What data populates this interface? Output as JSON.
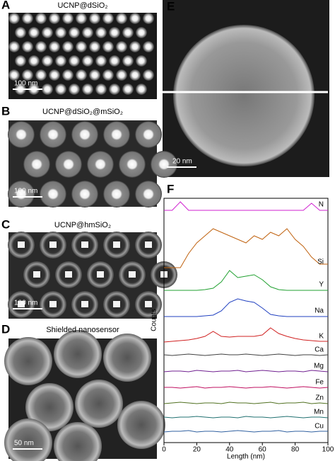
{
  "panels": [
    {
      "label": "A",
      "title": "UCNP@dSiO₂",
      "scale_bar": "100 nm"
    },
    {
      "label": "B",
      "title": "UCNP@dSiO₂@mSiO₂",
      "scale_bar": "100 nm"
    },
    {
      "label": "C",
      "title": "UCNP@hmSiO₂",
      "scale_bar": "100 nm"
    },
    {
      "label": "D",
      "title": "Shielded nanosensor",
      "scale_bar": "50 nm"
    },
    {
      "label": "E",
      "scale_bar": "20 nm"
    },
    {
      "label": "F"
    }
  ],
  "chart_data": {
    "type": "line",
    "x_label": "Length (nm)",
    "y_label": "Counts",
    "xlim": [
      0,
      100
    ],
    "xticks": [
      0,
      20,
      40,
      60,
      80,
      100
    ],
    "x": [
      0,
      5,
      10,
      15,
      20,
      25,
      30,
      35,
      40,
      45,
      50,
      55,
      60,
      65,
      70,
      75,
      80,
      85,
      90,
      95,
      100
    ],
    "series": [
      {
        "name": "N",
        "color": "#d020d0",
        "values": [
          0,
          0,
          12,
          0,
          0,
          0,
          0,
          0,
          0,
          0,
          0,
          0,
          0,
          0,
          0,
          0,
          0,
          0,
          10,
          0,
          0
        ]
      },
      {
        "name": "Si",
        "color": "#c0620f",
        "values": [
          0,
          0,
          0,
          20,
          35,
          45,
          55,
          50,
          45,
          40,
          35,
          45,
          40,
          50,
          45,
          55,
          40,
          30,
          15,
          5,
          5
        ]
      },
      {
        "name": "Y",
        "color": "#20a030",
        "values": [
          0,
          0,
          0,
          0,
          0,
          1,
          3,
          12,
          28,
          18,
          20,
          22,
          15,
          5,
          1,
          0,
          0,
          0,
          0,
          0,
          0
        ]
      },
      {
        "name": "Na",
        "color": "#2040c0",
        "values": [
          0,
          0,
          0,
          0,
          0,
          1,
          2,
          8,
          20,
          25,
          22,
          20,
          12,
          3,
          1,
          0,
          0,
          0,
          0,
          0,
          0
        ]
      },
      {
        "name": "K",
        "color": "#d02020",
        "values": [
          0,
          1,
          2,
          3,
          5,
          8,
          15,
          8,
          7,
          8,
          8,
          8,
          10,
          20,
          12,
          8,
          5,
          3,
          2,
          1,
          1
        ]
      },
      {
        "name": "Ca",
        "color": "#404040",
        "values": [
          1,
          0,
          1,
          2,
          1,
          0,
          1,
          2,
          1,
          1,
          2,
          1,
          0,
          1,
          2,
          1,
          0,
          1,
          1,
          0,
          1
        ]
      },
      {
        "name": "Mg",
        "color": "#702090",
        "values": [
          0,
          1,
          1,
          0,
          2,
          1,
          0,
          1,
          1,
          2,
          0,
          1,
          2,
          1,
          0,
          1,
          1,
          0,
          2,
          1,
          0
        ]
      },
      {
        "name": "Fe",
        "color": "#c01060",
        "values": [
          1,
          1,
          0,
          1,
          2,
          0,
          1,
          1,
          2,
          1,
          0,
          1,
          1,
          2,
          1,
          0,
          1,
          2,
          1,
          0,
          1
        ]
      },
      {
        "name": "Zn",
        "color": "#507020",
        "values": [
          0,
          1,
          2,
          1,
          0,
          1,
          1,
          0,
          2,
          1,
          1,
          0,
          1,
          2,
          0,
          1,
          1,
          2,
          0,
          1,
          0
        ]
      },
      {
        "name": "Mn",
        "color": "#207070",
        "values": [
          1,
          0,
          1,
          1,
          2,
          1,
          0,
          1,
          1,
          0,
          2,
          1,
          1,
          0,
          1,
          2,
          1,
          0,
          1,
          1,
          0
        ]
      },
      {
        "name": "Cu",
        "color": "#3060a0",
        "values": [
          0,
          1,
          1,
          2,
          0,
          1,
          1,
          0,
          1,
          2,
          1,
          0,
          1,
          1,
          2,
          0,
          1,
          1,
          0,
          1,
          1
        ]
      }
    ]
  }
}
